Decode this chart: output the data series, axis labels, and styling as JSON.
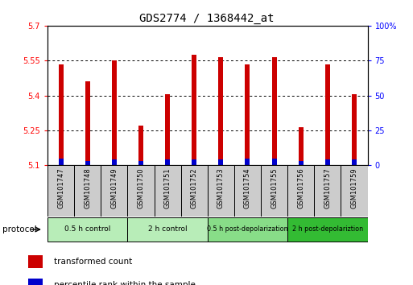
{
  "title": "GDS2774 / 1368442_at",
  "samples": [
    "GSM101747",
    "GSM101748",
    "GSM101749",
    "GSM101750",
    "GSM101751",
    "GSM101752",
    "GSM101753",
    "GSM101754",
    "GSM101755",
    "GSM101756",
    "GSM101757",
    "GSM101759"
  ],
  "red_values": [
    5.535,
    5.46,
    5.55,
    5.27,
    5.405,
    5.575,
    5.565,
    5.535,
    5.565,
    5.265,
    5.535,
    5.405
  ],
  "blue_values": [
    5.13,
    5.12,
    5.125,
    5.12,
    5.125,
    5.125,
    5.125,
    5.13,
    5.13,
    5.12,
    5.125,
    5.125
  ],
  "ymin": 5.1,
  "ymax": 5.7,
  "yticks": [
    5.1,
    5.25,
    5.4,
    5.55,
    5.7
  ],
  "ytick_labels": [
    "5.1",
    "5.25",
    "5.4",
    "5.55",
    "5.7"
  ],
  "right_yticks": [
    0,
    25,
    50,
    75,
    100
  ],
  "right_ytick_labels": [
    "0",
    "25",
    "50",
    "75",
    "100%"
  ],
  "groups": [
    {
      "label": "0.5 h control",
      "start": 0,
      "end": 3,
      "color": "#b8edb8"
    },
    {
      "label": "2 h control",
      "start": 3,
      "end": 6,
      "color": "#b8edb8"
    },
    {
      "label": "0.5 h post-depolarization",
      "start": 6,
      "end": 9,
      "color": "#88dd88"
    },
    {
      "label": "2 h post-depolariztion",
      "start": 9,
      "end": 12,
      "color": "#33bb33"
    }
  ],
  "protocol_label": "protocol",
  "legend_red": "transformed count",
  "legend_blue": "percentile rank within the sample",
  "bar_color_red": "#cc0000",
  "bar_color_blue": "#0000cc",
  "bar_width": 0.18,
  "tick_bg_color": "#cccccc",
  "title_fontsize": 10,
  "tick_fontsize": 7,
  "sample_fontsize": 6,
  "legend_fontsize": 7.5
}
